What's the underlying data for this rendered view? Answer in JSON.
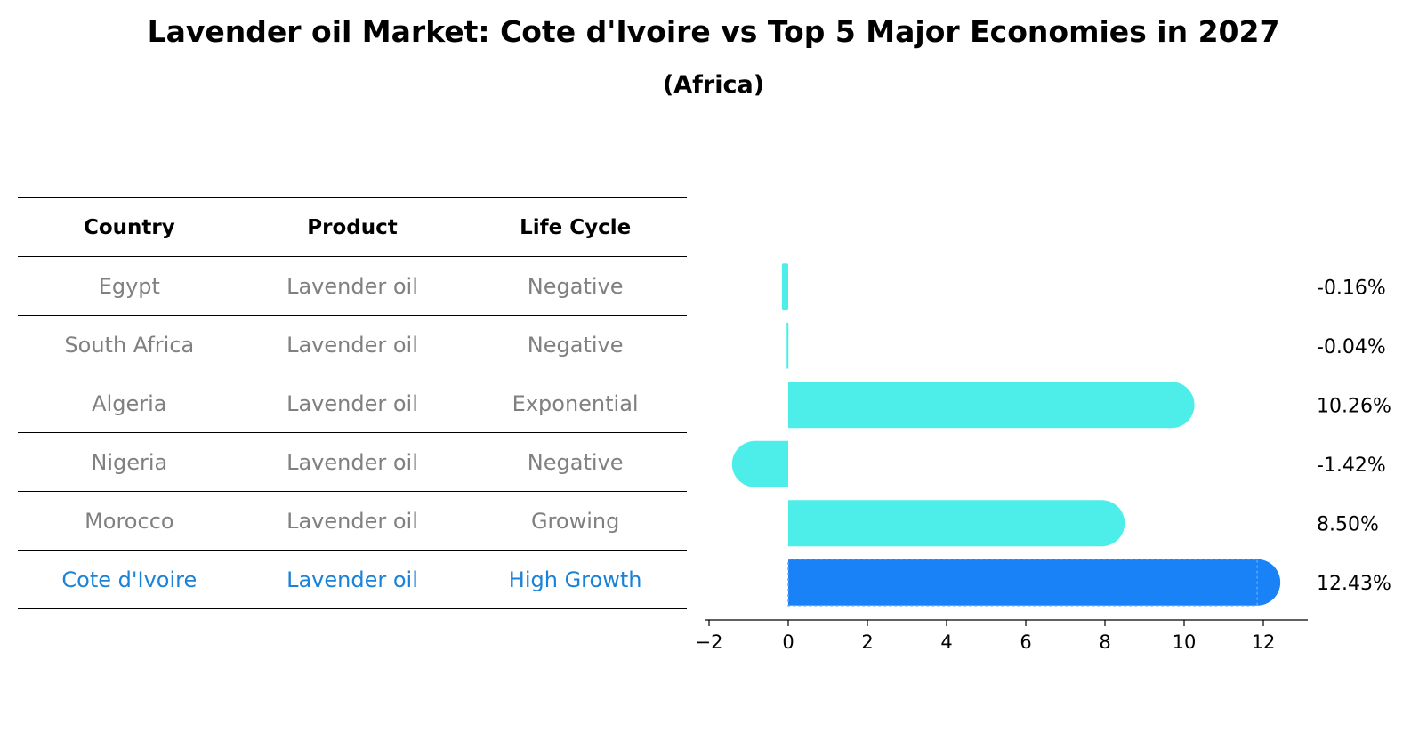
{
  "title": "Lavender oil Market: Cote d'Ivoire vs Top 5 Major Economies in 2027",
  "subtitle": "(Africa)",
  "table": {
    "headers": [
      "Country",
      "Product",
      "Life Cycle"
    ],
    "rows": [
      {
        "country": "Egypt",
        "product": "Lavender oil",
        "life_cycle": "Negative"
      },
      {
        "country": "South Africa",
        "product": "Lavender oil",
        "life_cycle": "Negative"
      },
      {
        "country": "Algeria",
        "product": "Lavender oil",
        "life_cycle": "Exponential"
      },
      {
        "country": "Nigeria",
        "product": "Lavender oil",
        "life_cycle": "Negative"
      },
      {
        "country": "Morocco",
        "product": "Lavender oil",
        "life_cycle": "Growing"
      },
      {
        "country": "Cote d'Ivoire",
        "product": "Lavender oil",
        "life_cycle": "High Growth"
      }
    ]
  },
  "colors": {
    "bar": "#4deeea",
    "highlight_bar": "#1a82f7",
    "highlight_text": "#1a82d8",
    "muted_text": "#808080"
  },
  "chart_data": {
    "type": "bar",
    "orientation": "horizontal",
    "categories": [
      "Egypt",
      "South Africa",
      "Algeria",
      "Nigeria",
      "Morocco",
      "Cote d'Ivoire"
    ],
    "values": [
      -0.16,
      -0.04,
      10.26,
      -1.42,
      8.5,
      12.43
    ],
    "value_labels": [
      "-0.16%",
      "-0.04%",
      "10.26%",
      "-1.42%",
      "8.50%",
      "12.43%"
    ],
    "highlight": "Cote d'Ivoire",
    "xlim": [
      -2.5,
      13.2
    ],
    "xticks": [
      -2,
      0,
      2,
      4,
      6,
      8,
      10,
      12
    ],
    "xtick_labels": [
      "−2",
      "0",
      "2",
      "4",
      "6",
      "8",
      "10",
      "12"
    ],
    "grid": false
  }
}
